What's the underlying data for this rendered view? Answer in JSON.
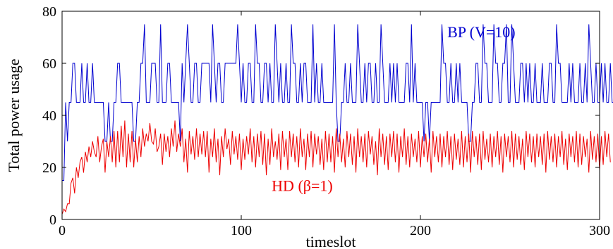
{
  "chart_data": {
    "type": "line",
    "xlabel": "timeslot",
    "ylabel": "Total power usage",
    "xlim": [
      0,
      300
    ],
    "ylim": [
      0,
      80
    ],
    "x_ticks": [
      0,
      100,
      200,
      300
    ],
    "y_ticks": [
      0,
      20,
      40,
      60,
      80
    ],
    "grid": false,
    "x_step": 1,
    "series": [
      {
        "name": "BP (V=10)",
        "color": "#0000d0",
        "values": [
          15,
          15,
          45,
          30,
          45,
          45,
          60,
          60,
          45,
          45,
          45,
          60,
          45,
          45,
          60,
          45,
          45,
          60,
          45,
          45,
          45,
          45,
          45,
          45,
          30,
          30,
          45,
          30,
          30,
          45,
          45,
          60,
          60,
          45,
          45,
          45,
          45,
          45,
          45,
          45,
          30,
          30,
          45,
          45,
          60,
          60,
          75,
          45,
          45,
          45,
          60,
          60,
          60,
          45,
          45,
          75,
          45,
          45,
          45,
          60,
          60,
          45,
          45,
          45,
          45,
          45,
          30,
          60,
          45,
          60,
          75,
          60,
          45,
          45,
          60,
          60,
          45,
          45,
          60,
          60,
          60,
          60,
          60,
          45,
          75,
          60,
          45,
          60,
          60,
          45,
          45,
          60,
          60,
          60,
          60,
          60,
          60,
          60,
          75,
          60,
          45,
          60,
          45,
          45,
          60,
          60,
          45,
          45,
          75,
          60,
          60,
          45,
          45,
          60,
          60,
          45,
          60,
          45,
          45,
          75,
          60,
          45,
          60,
          45,
          45,
          60,
          45,
          45,
          75,
          60,
          60,
          45,
          45,
          60,
          45,
          60,
          60,
          45,
          45,
          45,
          75,
          45,
          60,
          45,
          45,
          60,
          45,
          45,
          45,
          45,
          45,
          45,
          75,
          45,
          30,
          30,
          45,
          45,
          60,
          45,
          45,
          60,
          45,
          45,
          45,
          75,
          60,
          45,
          45,
          60,
          45,
          60,
          60,
          45,
          45,
          60,
          45,
          45,
          75,
          60,
          45,
          45,
          45,
          60,
          45,
          60,
          45,
          60,
          45,
          45,
          45,
          45,
          60,
          60,
          45,
          75,
          45,
          60,
          45,
          45,
          45,
          45,
          30,
          45,
          45,
          30,
          45,
          45,
          45,
          45,
          45,
          45,
          75,
          60,
          60,
          45,
          45,
          60,
          45,
          45,
          60,
          45,
          60,
          45,
          45,
          45,
          45,
          30,
          30,
          45,
          45,
          60,
          60,
          45,
          45,
          75,
          60,
          60,
          45,
          45,
          45,
          75,
          60,
          60,
          45,
          45,
          60,
          60,
          75,
          45,
          45,
          75,
          60,
          45,
          45,
          45,
          60,
          60,
          45,
          60,
          45,
          60,
          45,
          45,
          60,
          45,
          45,
          45,
          60,
          45,
          45,
          45,
          60,
          60,
          45,
          45,
          75,
          60,
          60,
          45,
          45,
          45,
          45,
          60,
          45,
          60,
          45,
          45,
          45,
          60,
          45,
          45,
          60,
          45,
          75,
          60,
          45,
          45,
          60,
          45,
          45,
          60,
          45,
          60,
          45,
          45,
          60,
          45,
          45,
          45,
          75,
          60,
          60,
          60
        ]
      },
      {
        "name": "HD (β=1)",
        "color": "#ee0000",
        "values": [
          2,
          4,
          3,
          6,
          6,
          14,
          16,
          10,
          20,
          16,
          22,
          24,
          18,
          26,
          22,
          28,
          24,
          30,
          26,
          24,
          32,
          22,
          28,
          31,
          18,
          30,
          24,
          32,
          22,
          34,
          20,
          34,
          22,
          36,
          24,
          38,
          20,
          33,
          22,
          34,
          20,
          31,
          22,
          32,
          24,
          35,
          28,
          33,
          30,
          37,
          30,
          29,
          35,
          26,
          28,
          33,
          21,
          33,
          26,
          32,
          24,
          35,
          28,
          38,
          26,
          33,
          28,
          35,
          22,
          31,
          18,
          34,
          25,
          32,
          23,
          35,
          24,
          33,
          25,
          34,
          24,
          34,
          18,
          31,
          24,
          35,
          22,
          31,
          17,
          32,
          24,
          35,
          27,
          31,
          21,
          34,
          25,
          32,
          23,
          33,
          19,
          31,
          23,
          32,
          25,
          35,
          22,
          32,
          20,
          33,
          24,
          34,
          21,
          33,
          17,
          31,
          21,
          35,
          24,
          30,
          23,
          33,
          19,
          34,
          24,
          31,
          19,
          34,
          24,
          33,
          22,
          32,
          20,
          35,
          24,
          31,
          19,
          33,
          24,
          34,
          20,
          33,
          25,
          32,
          21,
          31,
          19,
          34,
          22,
          33,
          22,
          32,
          18,
          35,
          24,
          33,
          22,
          31,
          20,
          34,
          24,
          33,
          21,
          32,
          18,
          35,
          24,
          32,
          22,
          33,
          20,
          34,
          25,
          32,
          21,
          30,
          17,
          35,
          24,
          33,
          21,
          32,
          19,
          33,
          24,
          34,
          22,
          33,
          18,
          32,
          24,
          35,
          21,
          32,
          20,
          33,
          24,
          31,
          22,
          34,
          20,
          32,
          24,
          33,
          22,
          31,
          18,
          34,
          24,
          32,
          22,
          33,
          20,
          32,
          24,
          34,
          21,
          32,
          19,
          33,
          23,
          31,
          21,
          34,
          20,
          32,
          22,
          33,
          18,
          34,
          24,
          32,
          21,
          33,
          19,
          34,
          23,
          31,
          22,
          33,
          20,
          32,
          24,
          34,
          21,
          32,
          18,
          33,
          24,
          32,
          22,
          34,
          20,
          33,
          23,
          32,
          21,
          31,
          19,
          34,
          24,
          33,
          22,
          32,
          20,
          33,
          24,
          32,
          21,
          33,
          18,
          34,
          23,
          32,
          22,
          33,
          20,
          32,
          24,
          34,
          21,
          31,
          19,
          33,
          24,
          32,
          22,
          34,
          20,
          33,
          21,
          32,
          24,
          31,
          18,
          34,
          23,
          32,
          22,
          33,
          19,
          32,
          21,
          34,
          24,
          33,
          22
        ]
      }
    ],
    "annotations": [
      {
        "text": "BP (V=10)",
        "color": "#0000d0",
        "at_x": 215,
        "at_y": 70
      },
      {
        "text": "HD (β=1)",
        "color": "#ee0000",
        "at_x": 117,
        "at_y": 11
      }
    ]
  }
}
